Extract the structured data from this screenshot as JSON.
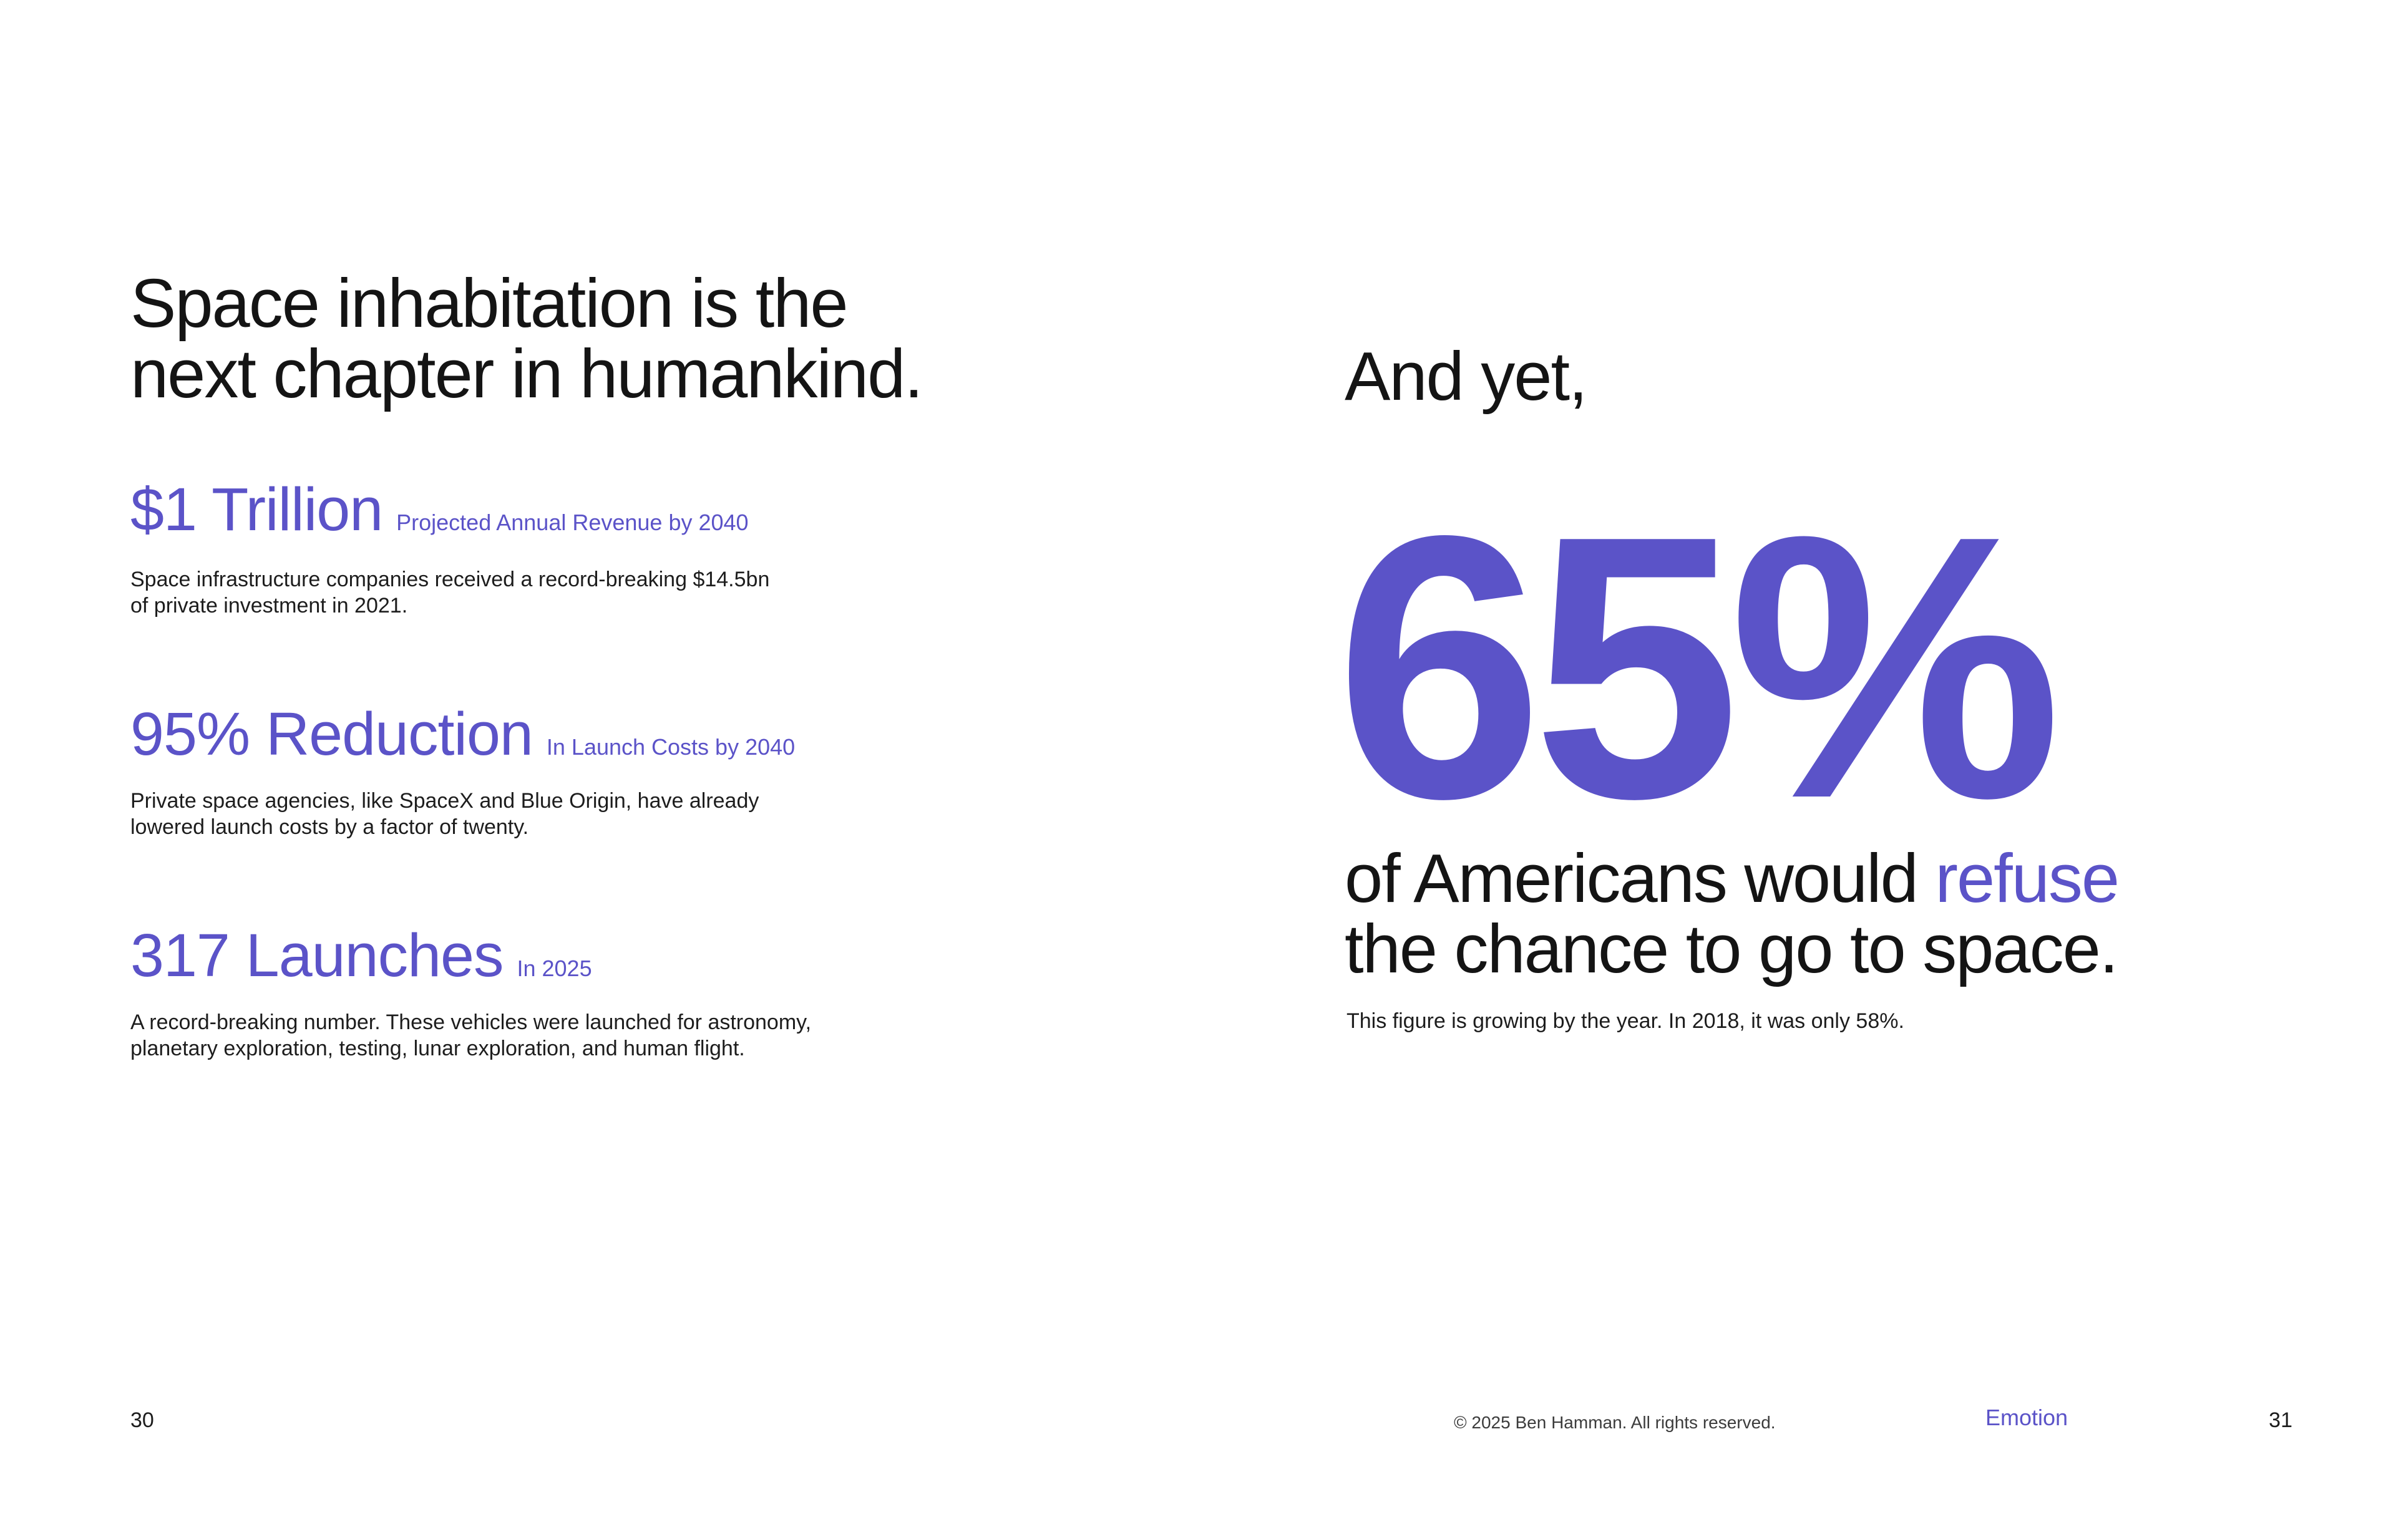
{
  "colors": {
    "accent": "#5b53c8",
    "ink": "#141414",
    "background": "#ffffff"
  },
  "left_page": {
    "heading": "Space inhabitation is the\nnext chapter in humankind.",
    "stats": [
      {
        "value": "$1 Trillion",
        "qualifier": "Projected Annual Revenue by 2040",
        "description": "Space infrastructure companies received a record-breaking $14.5bn\nof private investment in 2021."
      },
      {
        "value": "95% Reduction",
        "qualifier": "In Launch Costs by 2040",
        "description": "Private space agencies, like SpaceX and Blue Origin, have already\nlowered launch costs by a factor of twenty."
      },
      {
        "value": "317 Launches",
        "qualifier": "In 2025",
        "description": "A record-breaking number. These vehicles were launched for astronomy,\nplanetary exploration, testing, lunar exploration, and human flight."
      }
    ],
    "page_number": "30"
  },
  "right_page": {
    "intro": "And yet,",
    "big_stat": "65%",
    "statement_line1_text": "of Americans would ",
    "statement_line1_highlight": "refuse",
    "statement_line2": "the chance to go to space.",
    "footnote": "This figure is growing by the year. In 2018, it was only 58%.",
    "page_number": "31"
  },
  "footer": {
    "copyright": "© 2025 Ben Hamman. All rights reserved.",
    "brand": "Emotion"
  }
}
